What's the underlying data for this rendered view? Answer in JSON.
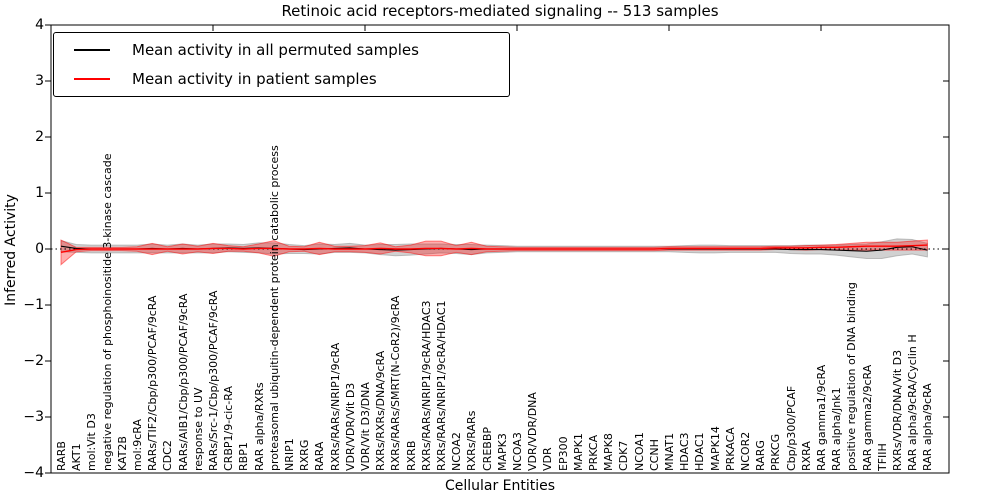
{
  "window": {
    "kind": "matplotlib-style-figure"
  },
  "chart_data": {
    "type": "line",
    "title": "Retinoic acid receptors-mediated signaling -- 513 samples",
    "xlabel": "Cellular Entities",
    "ylabel": "Inferred Activity",
    "ylim": [
      -4,
      4
    ],
    "ytick_labels": [
      "4",
      "3",
      "2",
      "1",
      "0",
      "−1",
      "−2",
      "−3",
      "−4"
    ],
    "ytick_values": [
      4,
      3,
      2,
      1,
      0,
      -1,
      -2,
      -3,
      -4
    ],
    "x_major_tick_indices": [
      10,
      20,
      30,
      40,
      50
    ],
    "grid": false,
    "zero_line": {
      "show": true,
      "style": "dotted",
      "color": "#000000",
      "y": 0
    },
    "legend_position": "upper left",
    "categories": [
      "RARB",
      "AKT1",
      "mol:Vit D3",
      "negative regulation of phosphoinositide 3-kinase cascade",
      "KAT2B",
      "mol:9cRA",
      "RARs/TIF2/Cbp/p300/PCAF/9cRA",
      "CDC2",
      "RARs/AIB1/Cbp/p300/PCAF/9cRA",
      "response to UV",
      "RARs/Src-1/Cbp/p300/PCAF/9cRA",
      "CRBP1/9-cic-RA",
      "RBP1",
      "RAR alpha/RXRs",
      "proteasomal ubiquitin-dependent protein catabolic process",
      "NRIP1",
      "RXRG",
      "RARA",
      "RXRs/RARs/NRIP1/9cRA",
      "VDR/VDR/Vit D3",
      "VDR/Vit D3/DNA",
      "RXRs/RXRs/DNA/9cRA",
      "RXRs/RARs/SMRT(N-CoR2)/9cRA",
      "RXRB",
      "RXRs/RARs/NRIP1/9cRA/HDAC3",
      "RXRs/RARs/NRIP1/9cRA/HDAC1",
      "NCOA2",
      "RXRs/RARs",
      "CREBBP",
      "MAPK3",
      "NCOA3",
      "VDR/VDR/DNA",
      "VDR",
      "EP300",
      "MAPK1",
      "PRKCA",
      "MAPK8",
      "CDK7",
      "NCOA1",
      "CCNH",
      "MNAT1",
      "HDAC3",
      "HDAC1",
      "MAPK14",
      "PRKACA",
      "NCOR2",
      "RARG",
      "PRKCG",
      "Cbp/p300/PCAF",
      "RXRA",
      "RAR gamma1/9cRA",
      "RAR alpha/Jnk1",
      "positive regulation of DNA binding",
      "RAR gamma2/9cRA",
      "TFIIH",
      "RXRs/VDR/DNA/Vit D3",
      "RAR alpha/9cRA/Cyclin H",
      "RAR alpha/9cRA"
    ],
    "series": [
      {
        "name": "Mean activity in all permuted samples",
        "color": "#000000",
        "band_color": "#999999",
        "band_opacity": 0.45,
        "values": [
          0.05,
          0.01,
          0.0,
          0.0,
          0.0,
          0.0,
          0.01,
          0.0,
          0.01,
          0.0,
          0.01,
          0.02,
          0.01,
          0.02,
          0.01,
          0.0,
          -0.01,
          0.0,
          0.01,
          0.02,
          0.0,
          -0.01,
          -0.02,
          -0.01,
          0.0,
          0.01,
          0.0,
          -0.01,
          0.0,
          0.0,
          0.0,
          0.0,
          0.0,
          0.0,
          0.0,
          0.0,
          0.0,
          0.0,
          0.0,
          0.0,
          0.0,
          0.0,
          0.0,
          0.0,
          0.0,
          0.0,
          0.0,
          0.0,
          -0.01,
          -0.01,
          -0.01,
          -0.02,
          -0.03,
          -0.04,
          -0.02,
          0.03,
          0.04,
          -0.02
        ],
        "band": [
          0.1,
          0.07,
          0.07,
          0.07,
          0.07,
          0.07,
          0.08,
          0.07,
          0.08,
          0.07,
          0.08,
          0.07,
          0.07,
          0.09,
          0.1,
          0.08,
          0.07,
          0.09,
          0.07,
          0.08,
          0.07,
          0.09,
          0.1,
          0.1,
          0.09,
          0.08,
          0.08,
          0.09,
          0.07,
          0.06,
          0.05,
          0.05,
          0.05,
          0.05,
          0.05,
          0.05,
          0.05,
          0.05,
          0.05,
          0.05,
          0.05,
          0.06,
          0.07,
          0.07,
          0.06,
          0.06,
          0.06,
          0.06,
          0.07,
          0.08,
          0.08,
          0.09,
          0.11,
          0.13,
          0.15,
          0.15,
          0.13,
          0.12
        ]
      },
      {
        "name": "Mean activity in patient samples",
        "color": "#ff0000",
        "band_color": "#ff0000",
        "band_opacity": 0.32,
        "values": [
          -0.06,
          -0.01,
          0.0,
          0.0,
          0.0,
          0.0,
          0.0,
          0.0,
          0.0,
          0.0,
          0.01,
          0.01,
          0.0,
          0.01,
          0.01,
          0.0,
          0.0,
          0.01,
          0.0,
          0.0,
          0.0,
          0.01,
          0.0,
          0.0,
          0.01,
          0.01,
          0.0,
          0.01,
          0.0,
          0.0,
          0.0,
          0.0,
          0.0,
          0.0,
          0.0,
          0.0,
          0.0,
          0.0,
          0.0,
          0.0,
          0.01,
          0.01,
          0.01,
          0.01,
          0.01,
          0.01,
          0.01,
          0.02,
          0.02,
          0.02,
          0.03,
          0.03,
          0.04,
          0.05,
          0.05,
          0.05,
          0.06,
          0.07
        ],
        "band": [
          0.22,
          0.04,
          0.03,
          0.03,
          0.03,
          0.04,
          0.1,
          0.04,
          0.09,
          0.05,
          0.09,
          0.05,
          0.04,
          0.08,
          0.14,
          0.05,
          0.04,
          0.11,
          0.05,
          0.05,
          0.06,
          0.1,
          0.04,
          0.07,
          0.13,
          0.13,
          0.06,
          0.11,
          0.05,
          0.04,
          0.03,
          0.03,
          0.03,
          0.03,
          0.03,
          0.03,
          0.03,
          0.03,
          0.03,
          0.03,
          0.03,
          0.03,
          0.03,
          0.03,
          0.03,
          0.03,
          0.03,
          0.03,
          0.03,
          0.04,
          0.04,
          0.05,
          0.06,
          0.07,
          0.07,
          0.07,
          0.08,
          0.09
        ]
      }
    ]
  }
}
